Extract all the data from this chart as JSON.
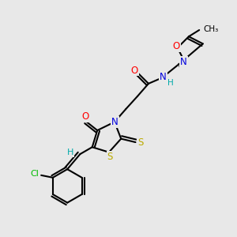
{
  "bg_color": "#e8e8e8",
  "bond_color": "#000000",
  "atom_colors": {
    "N": "#0000dd",
    "O": "#ff0000",
    "S": "#bbaa00",
    "Cl": "#00bb00",
    "H": "#00aaaa",
    "C": "#000000"
  },
  "figsize": [
    3.0,
    3.0
  ],
  "dpi": 100
}
